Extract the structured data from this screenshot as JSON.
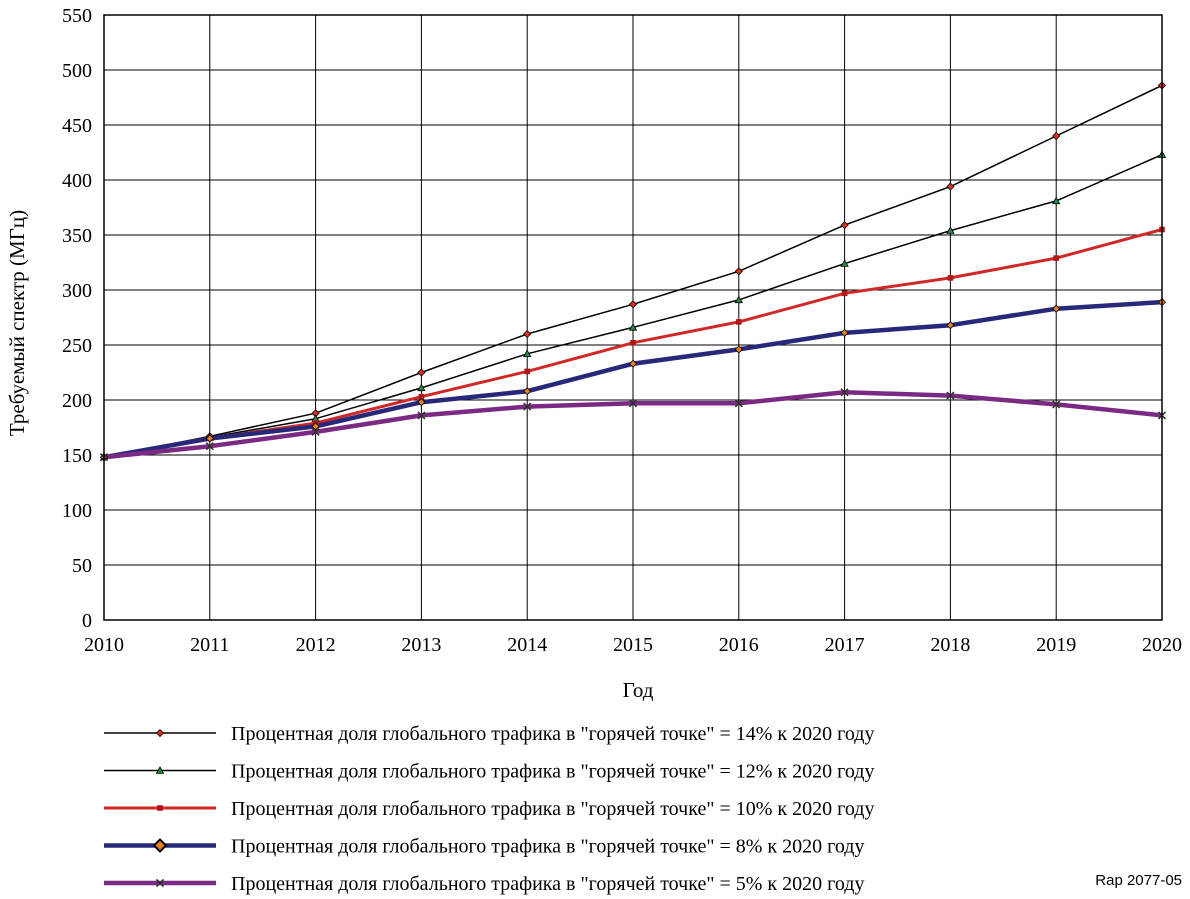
{
  "chart_data": {
    "type": "line",
    "title": "",
    "xlabel": "Год",
    "ylabel": "Требуемый спектр (МГц)",
    "xlim": [
      2010,
      2020
    ],
    "ylim": [
      0,
      550
    ],
    "x": [
      2010,
      2011,
      2012,
      2013,
      2014,
      2015,
      2016,
      2017,
      2018,
      2019,
      2020
    ],
    "x_tick_labels": [
      "2010",
      "2011",
      "2012",
      "2013",
      "2014",
      "2015",
      "2016",
      "2017",
      "2018",
      "2019",
      "2020"
    ],
    "y_tick_labels": [
      "0",
      "50",
      "100",
      "150",
      "200",
      "250",
      "300",
      "350",
      "400",
      "450",
      "500",
      "550"
    ],
    "grid": true,
    "legend_position": "bottom",
    "series": [
      {
        "name": "Процентная доля глобального трафика в \"горячей точке\" = 14% к 2020 году",
        "values": [
          148,
          167,
          188,
          225,
          260,
          287,
          317,
          359,
          394,
          440,
          486
        ],
        "color": "#000000",
        "marker": "diamond",
        "marker_color": "#e03020"
      },
      {
        "name": "Процентная доля глобального трафика в \"горячей точке\" = 12% к 2020 году",
        "values": [
          148,
          166,
          183,
          211,
          242,
          266,
          291,
          324,
          354,
          381,
          423
        ],
        "color": "#000000",
        "marker": "triangle",
        "marker_color": "#1a9040"
      },
      {
        "name": "Процентная доля глобального трафика в \"горячей точке\" = 10% к 2020 году",
        "values": [
          148,
          165,
          179,
          203,
          226,
          252,
          271,
          297,
          311,
          329,
          355
        ],
        "color": "#d02828",
        "marker": "square",
        "marker_color": "#b01818"
      },
      {
        "name": "Процентная доля глобального трафика в \"горячей точке\" = 8% к 2020 году",
        "values": [
          148,
          165,
          176,
          198,
          208,
          233,
          246,
          261,
          268,
          283,
          289
        ],
        "color": "#28287a",
        "marker": "diamond",
        "marker_color": "#e88020"
      },
      {
        "name": "Процентная доля глобального трафика в \"горячей точке\" = 5% к 2020 году",
        "values": [
          148,
          158,
          171,
          186,
          194,
          197,
          197,
          207,
          204,
          196,
          186
        ],
        "color": "#7a2a82",
        "marker": "x",
        "marker_color": "#303030"
      }
    ]
  },
  "reference": "Rap 2077-05"
}
